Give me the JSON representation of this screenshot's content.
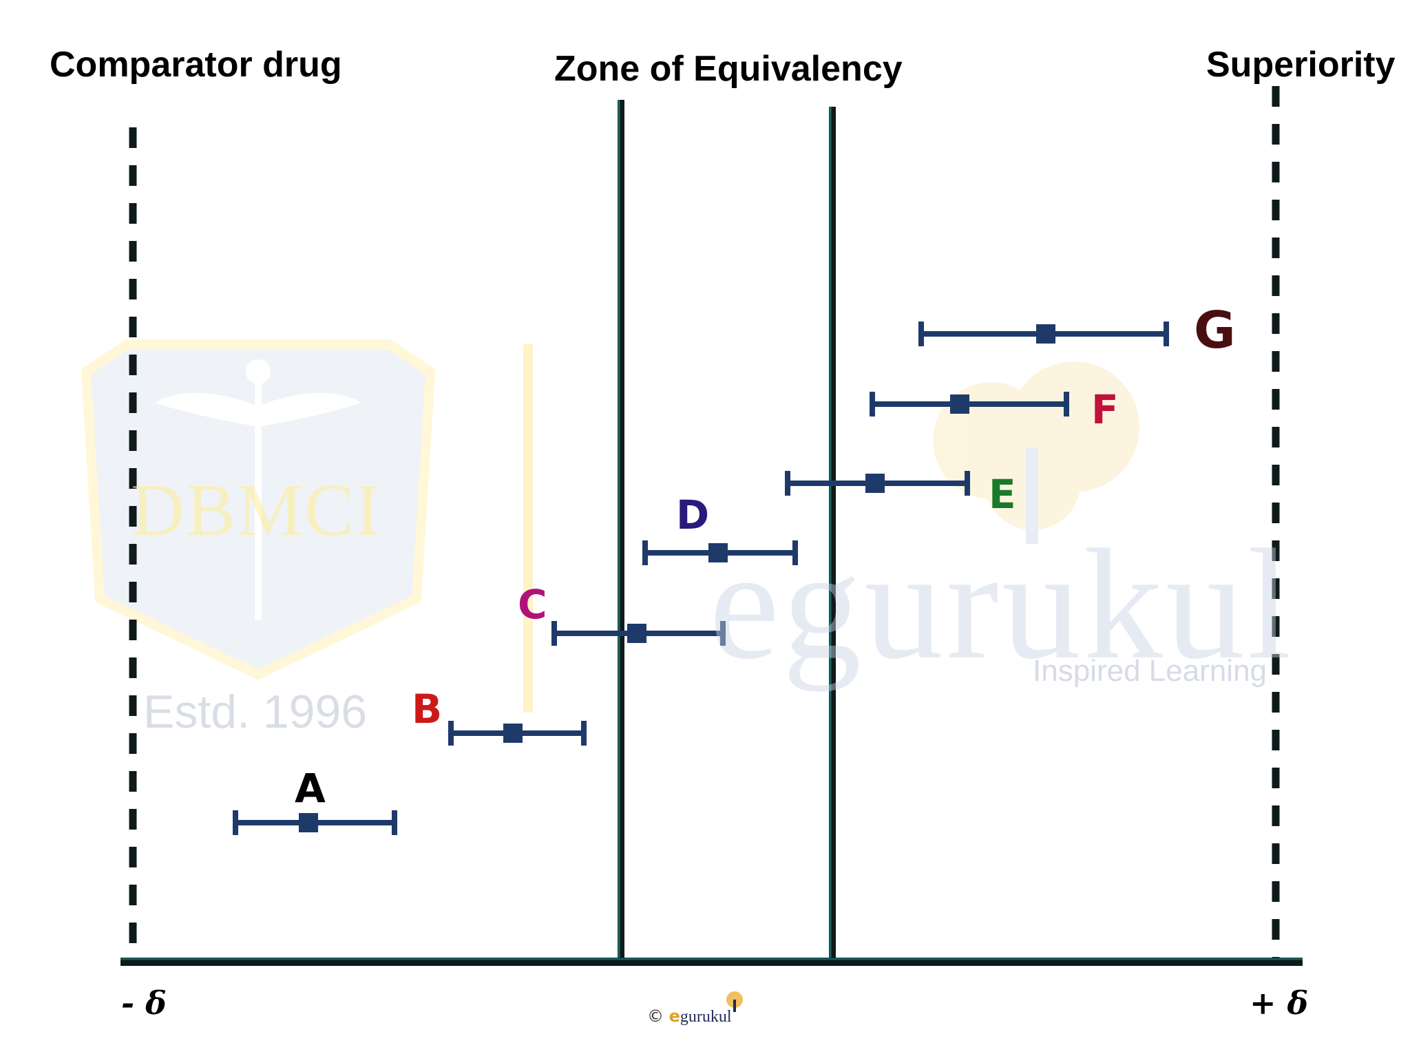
{
  "headers": {
    "left": "Comparator drug",
    "middle": "Zone of Equivalency",
    "right": "Superiority"
  },
  "axis": {
    "left_label": "- δ",
    "right_label": "+ δ"
  },
  "intervals": [
    {
      "label": "A",
      "color": "#000000"
    },
    {
      "label": "B",
      "color": "#cc1a1a"
    },
    {
      "label": "C",
      "color": "#b0127a"
    },
    {
      "label": "D",
      "color": "#2a1a7a"
    },
    {
      "label": "E",
      "color": "#1a7a2a"
    },
    {
      "label": "F",
      "color": "#c0123a"
    },
    {
      "label": "G",
      "color": "#4a0e0e"
    }
  ],
  "colors": {
    "bar": "#1e3a6a",
    "axis": "#0f1a1a",
    "teal": "#1f8a8a"
  },
  "watermarks": {
    "logo_text": "DBMCI",
    "established": "Estd. 1996",
    "brand": "egurukul",
    "tagline": "Inspired Learning"
  },
  "copyright": {
    "symbol": "©",
    "brand_e": "e",
    "brand_rest": "gurukul"
  }
}
